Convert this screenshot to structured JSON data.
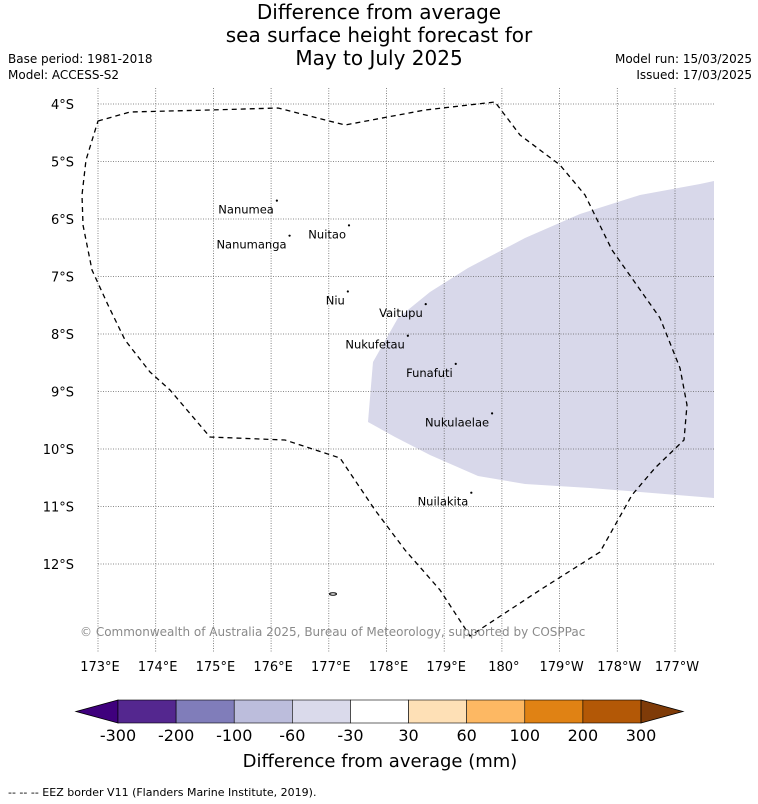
{
  "header": {
    "title_lines": [
      "Difference from average",
      "sea surface height forecast for",
      "May to July 2025"
    ],
    "base_period": "Base period: 1981-2018",
    "model": "Model: ACCESS-S2",
    "model_run": "Model run: 15/03/2025",
    "issued": "Issued: 17/03/2025"
  },
  "map": {
    "lat_ticks": [
      "4°S",
      "5°S",
      "6°S",
      "7°S",
      "8°S",
      "9°S",
      "10°S",
      "11°S",
      "12°S"
    ],
    "lon_ticks": [
      "173°E",
      "174°E",
      "175°E",
      "176°E",
      "177°E",
      "178°E",
      "179°E",
      "180°",
      "179°W",
      "178°W",
      "177°W"
    ],
    "islands": [
      {
        "name": "Nanumea",
        "lon": 176.1,
        "lat": -5.68
      },
      {
        "name": "Nuitao",
        "lon": 177.35,
        "lat": -6.11
      },
      {
        "name": "Nanumanga",
        "lon": 176.32,
        "lat": -6.29
      },
      {
        "name": "Niu",
        "lon": 177.33,
        "lat": -7.26
      },
      {
        "name": "Vaitupu",
        "lon": 178.68,
        "lat": -7.48
      },
      {
        "name": "Nukufetau",
        "lon": 178.37,
        "lat": -8.03
      },
      {
        "name": "Funafuti",
        "lon": 179.2,
        "lat": -8.52
      },
      {
        "name": "Nukulaelae",
        "lon": 179.83,
        "lat": -9.38
      },
      {
        "name": "Nuilakita",
        "lon": 179.47,
        "lat": -10.76
      }
    ],
    "anomaly_region": {
      "category": "-60 to -30",
      "color": "#d8d8ea"
    },
    "copyright": "© Commonwealth of Australia 2025, Bureau of Meteorology, supported by COSPPac"
  },
  "colorbar": {
    "title": "Difference from average (mm)",
    "labels": [
      "-300",
      "-200",
      "-100",
      "-60",
      "-30",
      "30",
      "60",
      "100",
      "200",
      "300"
    ],
    "colors": [
      "#3f007d",
      "#54278f",
      "#807dba",
      "#bcbddc",
      "#dadaeb",
      "#ffffff",
      "#fee0b6",
      "#fdb863",
      "#e08214",
      "#b35806",
      "#7f3b08"
    ]
  },
  "footnote": "-- -- -- EEZ border V11 (Flanders Marine Institute, 2019)."
}
